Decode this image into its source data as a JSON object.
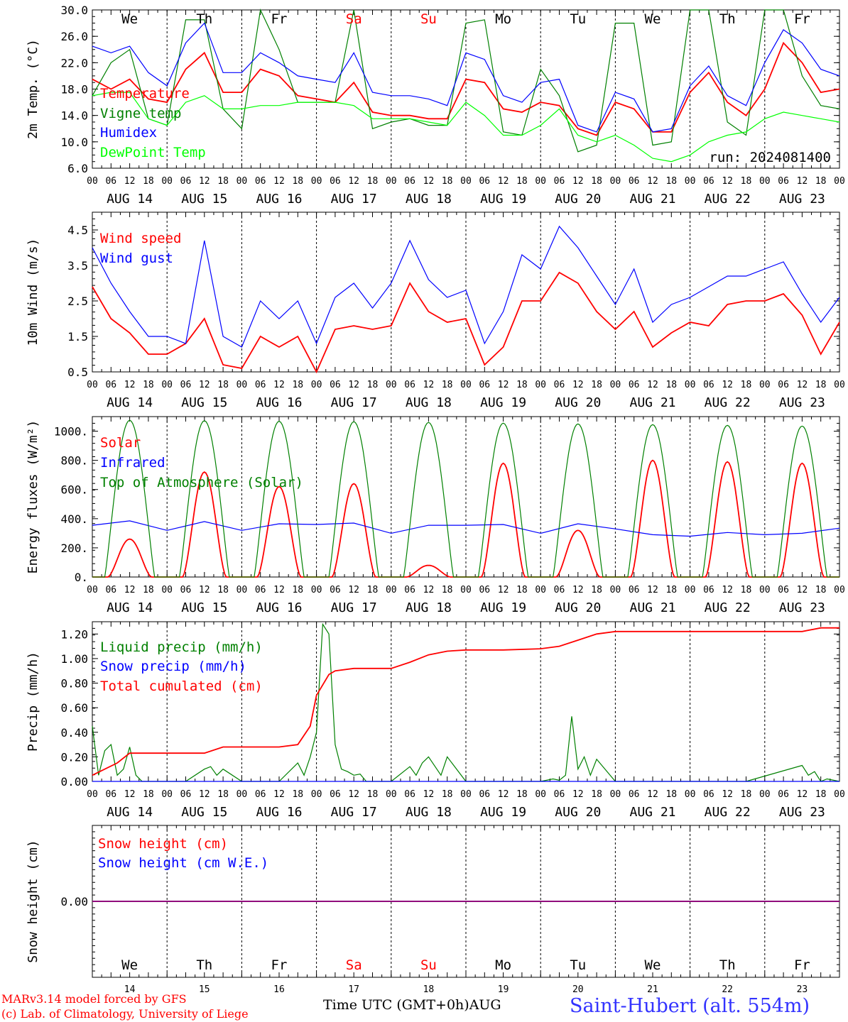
{
  "chart_data": [
    {
      "type": "line",
      "panel": "temperature",
      "ylabel": "2m Temp. (°C)",
      "ylim": [
        6.0,
        30.0
      ],
      "yticks": [
        "6.0",
        "10.0",
        "14.0",
        "18.0",
        "22.0",
        "26.0",
        "30.0"
      ],
      "annotation": "run: 2024081400",
      "series": [
        {
          "name": "Temperature",
          "color": "#ff0000",
          "x": [
            0,
            6,
            12,
            18,
            24,
            30,
            36,
            42,
            48,
            54,
            60,
            66,
            72,
            78,
            84,
            90,
            96,
            102,
            108,
            114,
            120,
            126,
            132,
            138,
            144,
            150,
            156,
            162,
            168,
            174,
            180,
            186,
            192,
            198,
            204,
            210,
            216,
            222,
            228,
            234,
            240
          ],
          "values": [
            19.5,
            18.0,
            19.5,
            16.5,
            16.0,
            21.0,
            23.5,
            17.5,
            17.5,
            21.0,
            20.0,
            17.0,
            16.5,
            16.0,
            19.0,
            14.5,
            14.0,
            14.0,
            13.5,
            13.5,
            19.5,
            19.0,
            15.0,
            14.5,
            16.0,
            15.5,
            12.0,
            11.0,
            16.0,
            15.0,
            11.5,
            11.5,
            17.5,
            20.5,
            16.0,
            14.0,
            18.0,
            25.0,
            22.0,
            17.5,
            18.0
          ]
        },
        {
          "name": "Vigne temp",
          "color": "#008000",
          "x": [
            0,
            6,
            12,
            18,
            24,
            30,
            36,
            42,
            48,
            54,
            60,
            66,
            72,
            78,
            84,
            90,
            96,
            102,
            108,
            114,
            120,
            126,
            132,
            138,
            144,
            150,
            156,
            162,
            168,
            174,
            180,
            186,
            192,
            198,
            204,
            210,
            216,
            222,
            228,
            234,
            240
          ],
          "values": [
            17.0,
            22.0,
            24.0,
            13.5,
            12.5,
            28.5,
            28.5,
            15.0,
            12.0,
            30.0,
            24.0,
            16.0,
            16.0,
            16.0,
            30.0,
            12.0,
            13.0,
            13.5,
            12.5,
            12.5,
            28.0,
            28.5,
            11.5,
            11.0,
            21.0,
            17.0,
            8.5,
            9.5,
            28.0,
            28.0,
            9.5,
            10.0,
            30.0,
            30.0,
            13.0,
            11.0,
            30.0,
            30.0,
            20.0,
            15.5,
            15.0
          ]
        },
        {
          "name": "Humidex",
          "color": "#0000ff",
          "x": [
            0,
            6,
            12,
            18,
            24,
            30,
            36,
            42,
            48,
            54,
            60,
            66,
            72,
            78,
            84,
            90,
            96,
            102,
            108,
            114,
            120,
            126,
            132,
            138,
            144,
            150,
            156,
            162,
            168,
            174,
            180,
            186,
            192,
            198,
            204,
            210,
            216,
            222,
            228,
            234,
            240
          ],
          "values": [
            24.5,
            23.5,
            24.5,
            20.5,
            18.5,
            25.0,
            28.0,
            20.5,
            20.5,
            23.5,
            22.0,
            20.0,
            19.5,
            19.0,
            23.5,
            17.5,
            17.0,
            17.0,
            16.5,
            15.5,
            23.5,
            22.5,
            17.0,
            16.0,
            19.0,
            19.5,
            12.5,
            11.5,
            17.5,
            16.5,
            11.5,
            12.0,
            18.5,
            21.5,
            17.0,
            15.5,
            22.0,
            27.0,
            25.0,
            21.0,
            20.0
          ]
        },
        {
          "name": "DewPoint Temp",
          "color": "#00ff00",
          "x": [
            0,
            6,
            12,
            18,
            24,
            30,
            36,
            42,
            48,
            54,
            60,
            66,
            72,
            78,
            84,
            90,
            96,
            102,
            108,
            114,
            120,
            126,
            132,
            138,
            144,
            150,
            156,
            162,
            168,
            174,
            180,
            186,
            192,
            198,
            204,
            210,
            216,
            222,
            228,
            234,
            240
          ],
          "values": [
            17.0,
            17.5,
            17.5,
            13.5,
            12.5,
            16.0,
            17.0,
            15.0,
            15.0,
            15.5,
            15.5,
            16.0,
            16.0,
            16.0,
            15.5,
            13.5,
            13.5,
            13.5,
            13.0,
            12.5,
            16.0,
            14.0,
            11.0,
            11.0,
            12.5,
            15.0,
            11.0,
            10.0,
            11.0,
            9.5,
            7.5,
            7.0,
            8.0,
            10.0,
            11.0,
            11.5,
            13.5,
            14.5,
            14.0,
            13.5,
            13.0
          ]
        }
      ]
    },
    {
      "type": "line",
      "panel": "wind",
      "ylabel": "10m Wind (m/s)",
      "ylim": [
        0.5,
        5.0
      ],
      "yticks": [
        "0.5",
        "1.5",
        "2.5",
        "3.5",
        "4.5"
      ],
      "series": [
        {
          "name": "Wind speed",
          "color": "#ff0000",
          "x": [
            0,
            6,
            12,
            18,
            24,
            30,
            36,
            42,
            48,
            54,
            60,
            66,
            72,
            78,
            84,
            90,
            96,
            102,
            108,
            114,
            120,
            126,
            132,
            138,
            144,
            150,
            156,
            162,
            168,
            174,
            180,
            186,
            192,
            198,
            204,
            210,
            216,
            222,
            228,
            234,
            240
          ],
          "values": [
            2.9,
            2.0,
            1.6,
            1.0,
            1.0,
            1.3,
            2.0,
            0.7,
            0.6,
            1.5,
            1.2,
            1.5,
            0.5,
            1.7,
            1.8,
            1.7,
            1.8,
            3.0,
            2.2,
            1.9,
            2.0,
            0.7,
            1.2,
            2.5,
            2.5,
            3.3,
            3.0,
            2.2,
            1.7,
            2.2,
            1.2,
            1.6,
            1.9,
            1.8,
            2.4,
            2.5,
            2.5,
            2.7,
            2.1,
            1.0,
            1.9
          ]
        },
        {
          "name": "Wind gust",
          "color": "#0000ff",
          "x": [
            0,
            6,
            12,
            18,
            24,
            30,
            36,
            42,
            48,
            54,
            60,
            66,
            72,
            78,
            84,
            90,
            96,
            102,
            108,
            114,
            120,
            126,
            132,
            138,
            144,
            150,
            156,
            162,
            168,
            174,
            180,
            186,
            192,
            198,
            204,
            210,
            216,
            222,
            228,
            234,
            240
          ],
          "values": [
            4.0,
            3.0,
            2.2,
            1.5,
            1.5,
            1.3,
            4.2,
            1.5,
            1.2,
            2.5,
            2.0,
            2.5,
            1.3,
            2.6,
            3.0,
            2.3,
            3.0,
            4.2,
            3.1,
            2.6,
            2.8,
            1.3,
            2.2,
            3.8,
            3.4,
            4.6,
            4.0,
            3.2,
            2.4,
            3.4,
            1.9,
            2.4,
            2.6,
            2.9,
            3.2,
            3.2,
            3.4,
            3.6,
            2.7,
            1.9,
            2.6
          ]
        }
      ]
    },
    {
      "type": "line",
      "panel": "energy",
      "ylabel": "Energy fluxes (W/m²)",
      "ylim": [
        0,
        1100
      ],
      "yticks": [
        "0.",
        "200.",
        "400.",
        "600.",
        "800.",
        "1000."
      ],
      "series": [
        {
          "name": "Solar",
          "color": "#ff0000",
          "days_peak": [
            260,
            720,
            620,
            640,
            80,
            780,
            320,
            800,
            790,
            780
          ]
        },
        {
          "name": "Infrared",
          "color": "#0000ff",
          "x": [
            0,
            12,
            24,
            36,
            48,
            60,
            72,
            84,
            96,
            108,
            120,
            132,
            144,
            156,
            168,
            180,
            192,
            204,
            216,
            228,
            240
          ],
          "values": [
            355,
            385,
            320,
            380,
            320,
            365,
            360,
            370,
            300,
            355,
            355,
            360,
            300,
            365,
            330,
            290,
            280,
            305,
            290,
            300,
            335
          ]
        },
        {
          "name": "Top of Atmosphere (Solar)",
          "color": "#008000",
          "days_peak": [
            1075,
            1072,
            1068,
            1065,
            1060,
            1055,
            1050,
            1045,
            1040,
            1035
          ]
        }
      ]
    },
    {
      "type": "line",
      "panel": "precip",
      "ylabel": "Precip (mm/h)",
      "ylim": [
        0.0,
        1.3
      ],
      "yticks": [
        "0.00",
        "0.20",
        "0.40",
        "0.60",
        "0.80",
        "1.00",
        "1.20"
      ],
      "series": [
        {
          "name": "Liquid precip (mm/h)",
          "color": "#008000",
          "x": [
            0,
            2,
            4,
            6,
            8,
            10,
            12,
            14,
            16,
            18,
            24,
            30,
            36,
            38,
            40,
            42,
            48,
            60,
            66,
            68,
            70,
            72,
            74,
            76,
            78,
            80,
            82,
            84,
            86,
            88,
            96,
            102,
            104,
            106,
            108,
            112,
            114,
            120,
            126,
            132,
            138,
            144,
            148,
            150,
            152,
            154,
            156,
            158,
            160,
            162,
            168,
            180,
            192,
            210,
            228,
            230,
            232,
            234,
            236,
            240
          ],
          "values": [
            0.45,
            0.05,
            0.25,
            0.3,
            0.05,
            0.1,
            0.28,
            0.05,
            0.0,
            0.0,
            0.0,
            0.0,
            0.1,
            0.12,
            0.05,
            0.1,
            0.0,
            0.0,
            0.15,
            0.05,
            0.2,
            0.4,
            1.28,
            1.2,
            0.3,
            0.1,
            0.08,
            0.05,
            0.06,
            0.0,
            0.0,
            0.12,
            0.05,
            0.15,
            0.2,
            0.05,
            0.2,
            0.0,
            0.0,
            0.0,
            0.0,
            0.0,
            0.02,
            0.01,
            0.05,
            0.53,
            0.1,
            0.2,
            0.05,
            0.18,
            0.0,
            0.0,
            0.0,
            0.0,
            0.13,
            0.05,
            0.08,
            0.0,
            0.02,
            0.0
          ]
        },
        {
          "name": "Snow precip (mm/h)",
          "color": "#0000ff",
          "x": [
            0,
            240
          ],
          "values": [
            0,
            0
          ]
        },
        {
          "name": "Total cumulated (cm)",
          "color": "#ff0000",
          "x": [
            0,
            8,
            12,
            18,
            24,
            36,
            42,
            48,
            60,
            66,
            70,
            72,
            76,
            78,
            84,
            96,
            102,
            108,
            114,
            120,
            132,
            144,
            150,
            156,
            162,
            168,
            180,
            192,
            204,
            216,
            228,
            234,
            240
          ],
          "values": [
            0.05,
            0.15,
            0.23,
            0.23,
            0.23,
            0.23,
            0.28,
            0.28,
            0.28,
            0.3,
            0.45,
            0.7,
            0.87,
            0.9,
            0.92,
            0.92,
            0.97,
            1.03,
            1.06,
            1.07,
            1.07,
            1.08,
            1.1,
            1.15,
            1.2,
            1.22,
            1.22,
            1.22,
            1.22,
            1.22,
            1.22,
            1.25,
            1.25
          ]
        }
      ]
    },
    {
      "type": "line",
      "panel": "snow",
      "ylabel": "Snow height (cm)",
      "ylim": [
        -1,
        1
      ],
      "yticks": [
        "0.00"
      ],
      "series": [
        {
          "name": "Snow height (cm)",
          "color": "#ff0000",
          "x": [
            0,
            240
          ],
          "values": [
            0,
            0
          ]
        },
        {
          "name": "Snow height (cm W.E.)",
          "color": "#0000ff",
          "x": [
            0,
            240
          ],
          "values": [
            0,
            0
          ]
        }
      ]
    }
  ],
  "x_axis": {
    "hour_ticks": [
      "00",
      "06",
      "12",
      "18"
    ],
    "end_tick": "00",
    "dates": [
      "AUG 14",
      "AUG 15",
      "AUG 16",
      "AUG 17",
      "AUG 18",
      "AUG 19",
      "AUG 20",
      "AUG 21",
      "AUG 22",
      "AUG 23"
    ],
    "day_numbers": [
      "14",
      "15",
      "16",
      "17",
      "18",
      "19",
      "20",
      "21",
      "22",
      "23"
    ],
    "weekdays": [
      "We",
      "Th",
      "Fr",
      "Sa",
      "Su",
      "Mo",
      "Tu",
      "We",
      "Th",
      "Fr"
    ],
    "weekend_color": "#ff0000",
    "weekday_color": "#000000",
    "xlabel": "Time UTC (GMT+0h)",
    "month": "AUG"
  },
  "footer": {
    "model": "MARv3.14 model forced by GFS",
    "credit": "(c) Lab. of Climatology, University of Liege",
    "station": "Saint-Hubert (alt. 554m)"
  }
}
